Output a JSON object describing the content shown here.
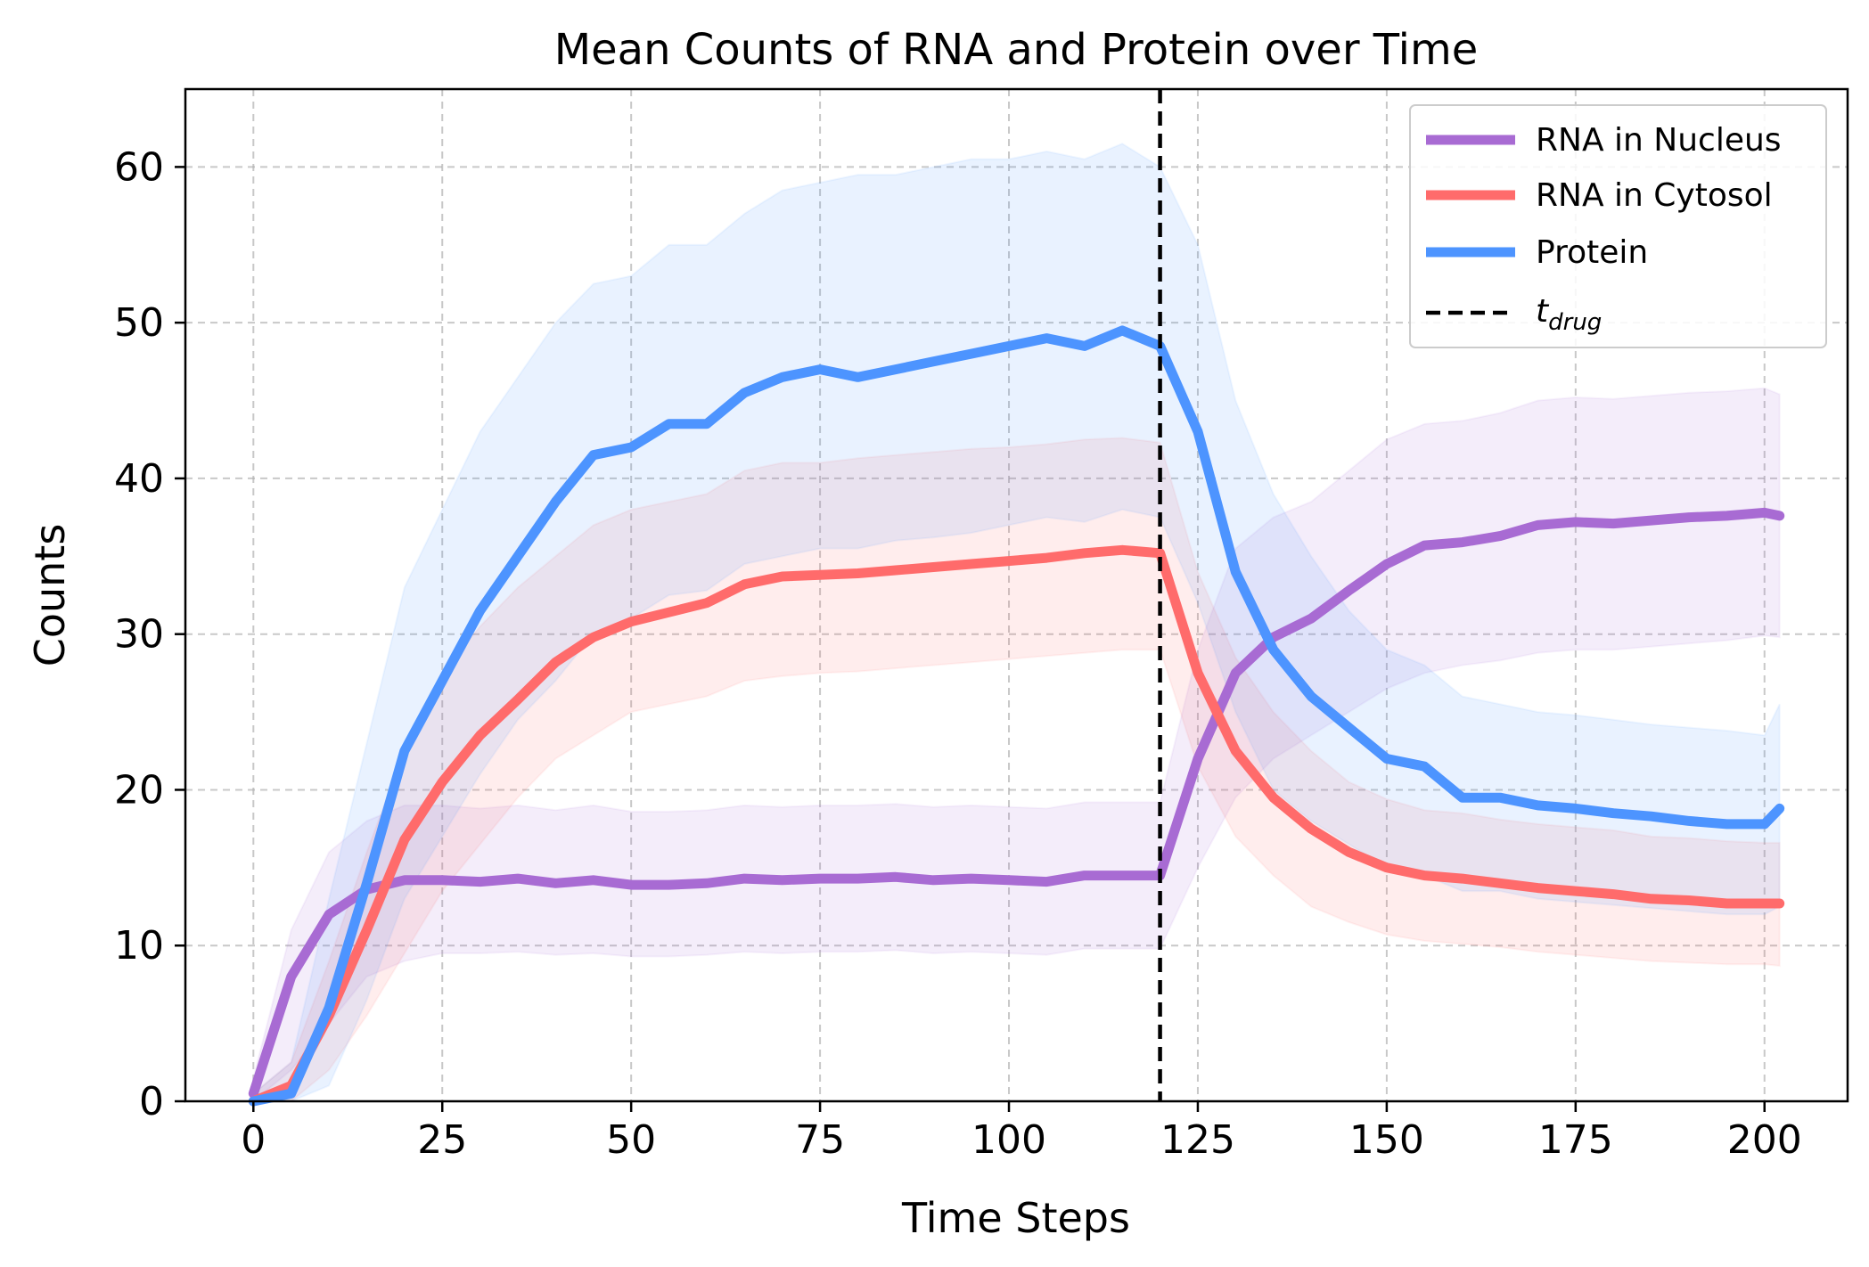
{
  "chart_data": {
    "type": "line",
    "title": "Mean Counts of RNA and Protein over Time",
    "xlabel": "Time Steps",
    "ylabel": "Counts",
    "xlim": [
      -9,
      211
    ],
    "ylim": [
      0,
      65
    ],
    "xticks": [
      0,
      25,
      50,
      75,
      100,
      125,
      150,
      175,
      200
    ],
    "yticks": [
      0,
      10,
      20,
      30,
      40,
      50,
      60
    ],
    "grid": true,
    "legend_position": "top-right",
    "vline": {
      "x": 120,
      "label_main": "t",
      "label_sub": "drug",
      "color": "#000000"
    },
    "x": [
      0,
      5,
      10,
      15,
      20,
      25,
      30,
      35,
      40,
      45,
      50,
      55,
      60,
      65,
      70,
      75,
      80,
      85,
      90,
      95,
      100,
      105,
      110,
      115,
      120,
      125,
      130,
      135,
      140,
      145,
      150,
      155,
      160,
      165,
      170,
      175,
      180,
      185,
      190,
      195,
      200,
      202
    ],
    "series": [
      {
        "name": "RNA in Nucleus",
        "color": "#a86bd3",
        "values": [
          0.5,
          8.0,
          12.0,
          13.6,
          14.2,
          14.2,
          14.1,
          14.3,
          14.0,
          14.2,
          13.9,
          13.9,
          14.0,
          14.3,
          14.2,
          14.3,
          14.3,
          14.4,
          14.2,
          14.3,
          14.2,
          14.1,
          14.5,
          14.5,
          14.5,
          22.0,
          27.5,
          29.8,
          31.0,
          32.8,
          34.5,
          35.7,
          35.9,
          36.3,
          37.0,
          37.2,
          37.1,
          37.3,
          37.5,
          37.6,
          37.8,
          37.6
        ],
        "lower": [
          0.0,
          2.0,
          5.0,
          8.0,
          9.0,
          9.5,
          9.5,
          9.6,
          9.4,
          9.5,
          9.3,
          9.3,
          9.4,
          9.6,
          9.5,
          9.6,
          9.6,
          9.7,
          9.5,
          9.6,
          9.5,
          9.4,
          9.8,
          9.8,
          9.8,
          15.0,
          19.5,
          22.0,
          23.5,
          25.0,
          26.5,
          27.5,
          28.0,
          28.3,
          28.8,
          29.0,
          29.0,
          29.2,
          29.4,
          29.6,
          29.9,
          29.8
        ],
        "upper": [
          1.5,
          11.0,
          16.0,
          18.0,
          19.0,
          19.0,
          18.8,
          19.0,
          18.7,
          19.0,
          18.6,
          18.6,
          18.7,
          19.0,
          18.9,
          19.0,
          19.0,
          19.1,
          18.9,
          19.0,
          18.9,
          18.8,
          19.2,
          19.2,
          19.2,
          29.0,
          35.5,
          37.5,
          38.5,
          40.5,
          42.5,
          43.5,
          43.7,
          44.2,
          45.0,
          45.2,
          45.1,
          45.3,
          45.5,
          45.6,
          45.8,
          45.4
        ]
      },
      {
        "name": "RNA in Cytosol",
        "color": "#ff6b6b",
        "values": [
          0.0,
          1.0,
          5.5,
          11.0,
          16.8,
          20.5,
          23.5,
          25.8,
          28.2,
          29.8,
          30.8,
          31.4,
          32.0,
          33.2,
          33.7,
          33.8,
          33.9,
          34.1,
          34.3,
          34.5,
          34.7,
          34.9,
          35.2,
          35.4,
          35.2,
          27.5,
          22.5,
          19.5,
          17.5,
          16.0,
          15.0,
          14.5,
          14.3,
          14.0,
          13.7,
          13.5,
          13.3,
          13.0,
          12.9,
          12.7,
          12.7,
          12.7
        ],
        "lower": [
          0.0,
          0.0,
          2.0,
          5.5,
          9.5,
          13.5,
          16.5,
          19.5,
          22.0,
          23.5,
          25.0,
          25.5,
          26.0,
          27.0,
          27.3,
          27.5,
          27.6,
          27.8,
          28.0,
          28.2,
          28.4,
          28.6,
          28.8,
          29.0,
          29.0,
          21.5,
          17.0,
          14.5,
          12.5,
          11.5,
          10.7,
          10.3,
          10.1,
          9.9,
          9.6,
          9.4,
          9.2,
          9.0,
          8.9,
          8.8,
          8.8,
          8.7
        ],
        "upper": [
          0.5,
          2.5,
          9.0,
          16.0,
          22.5,
          27.5,
          30.5,
          33.0,
          35.0,
          37.0,
          38.0,
          38.5,
          39.0,
          40.5,
          41.0,
          41.0,
          41.3,
          41.5,
          41.7,
          41.9,
          42.0,
          42.2,
          42.5,
          42.6,
          42.3,
          34.0,
          28.5,
          25.0,
          22.5,
          20.5,
          19.4,
          18.7,
          18.5,
          18.1,
          17.8,
          17.6,
          17.4,
          17.0,
          16.9,
          16.7,
          16.6,
          16.6
        ]
      },
      {
        "name": "Protein",
        "color": "#4d94ff",
        "values": [
          0.0,
          0.5,
          6.0,
          14.0,
          22.5,
          27.0,
          31.5,
          35.0,
          38.5,
          41.5,
          42.0,
          43.5,
          43.5,
          45.5,
          46.5,
          47.0,
          46.5,
          47.0,
          47.5,
          48.0,
          48.5,
          49.0,
          48.5,
          49.5,
          48.5,
          43.0,
          34.0,
          29.0,
          26.0,
          24.0,
          22.0,
          21.5,
          19.5,
          19.5,
          19.0,
          18.8,
          18.5,
          18.3,
          18.0,
          17.8,
          17.8,
          18.8
        ],
        "lower": [
          0.0,
          0.0,
          1.0,
          6.5,
          13.0,
          17.0,
          21.0,
          24.5,
          27.0,
          30.0,
          31.0,
          32.5,
          32.8,
          34.5,
          35.0,
          35.5,
          35.5,
          36.0,
          36.2,
          36.5,
          37.0,
          37.5,
          37.2,
          38.0,
          37.5,
          32.0,
          25.0,
          20.0,
          18.0,
          16.5,
          15.0,
          14.5,
          13.5,
          13.5,
          13.0,
          12.8,
          12.6,
          12.4,
          12.2,
          12.0,
          12.0,
          12.5
        ],
        "upper": [
          0.5,
          2.5,
          13.0,
          23.0,
          33.0,
          38.0,
          43.0,
          46.5,
          50.0,
          52.5,
          53.0,
          55.0,
          55.0,
          57.0,
          58.5,
          59.0,
          59.5,
          59.5,
          60.0,
          60.5,
          60.5,
          61.0,
          60.5,
          61.5,
          60.0,
          55.0,
          45.0,
          39.0,
          35.0,
          31.5,
          29.0,
          28.0,
          26.0,
          25.5,
          25.0,
          24.8,
          24.5,
          24.2,
          24.0,
          23.8,
          23.5,
          25.5
        ]
      }
    ]
  }
}
